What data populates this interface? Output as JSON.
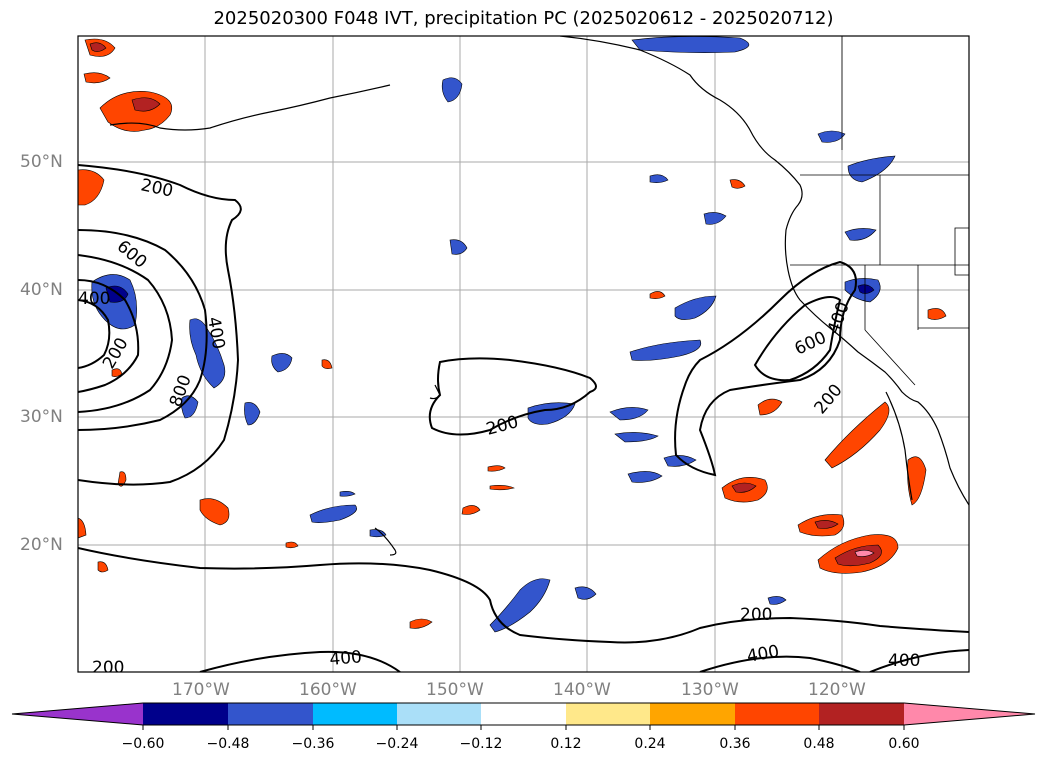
{
  "title": "2025020300 F048 IVT, precipitation PC (2025020612 - 2025020712)",
  "lat_labels": [
    "50°N",
    "40°N",
    "30°N",
    "20°N"
  ],
  "lon_labels": [
    "170°W",
    "160°W",
    "150°W",
    "140°W",
    "130°W",
    "120°W"
  ],
  "contour_labels": [
    "200",
    "600",
    "400",
    "400",
    "200",
    "800",
    "200",
    "400",
    "600",
    "200",
    "200",
    "400",
    "400",
    "400",
    "200"
  ],
  "colorbar": {
    "tick_labels": [
      "−0.60",
      "−0.48",
      "−0.36",
      "−0.24",
      "−0.12",
      "0.12",
      "0.24",
      "0.36",
      "0.48",
      "0.60"
    ],
    "colors": [
      "#9933cc",
      "#00008b",
      "#3355cc",
      "#00bbff",
      "#aadff8",
      "#ffffff",
      "#ffe88a",
      "#ffa500",
      "#ff4500",
      "#b22222",
      "#ff88aa"
    ]
  }
}
